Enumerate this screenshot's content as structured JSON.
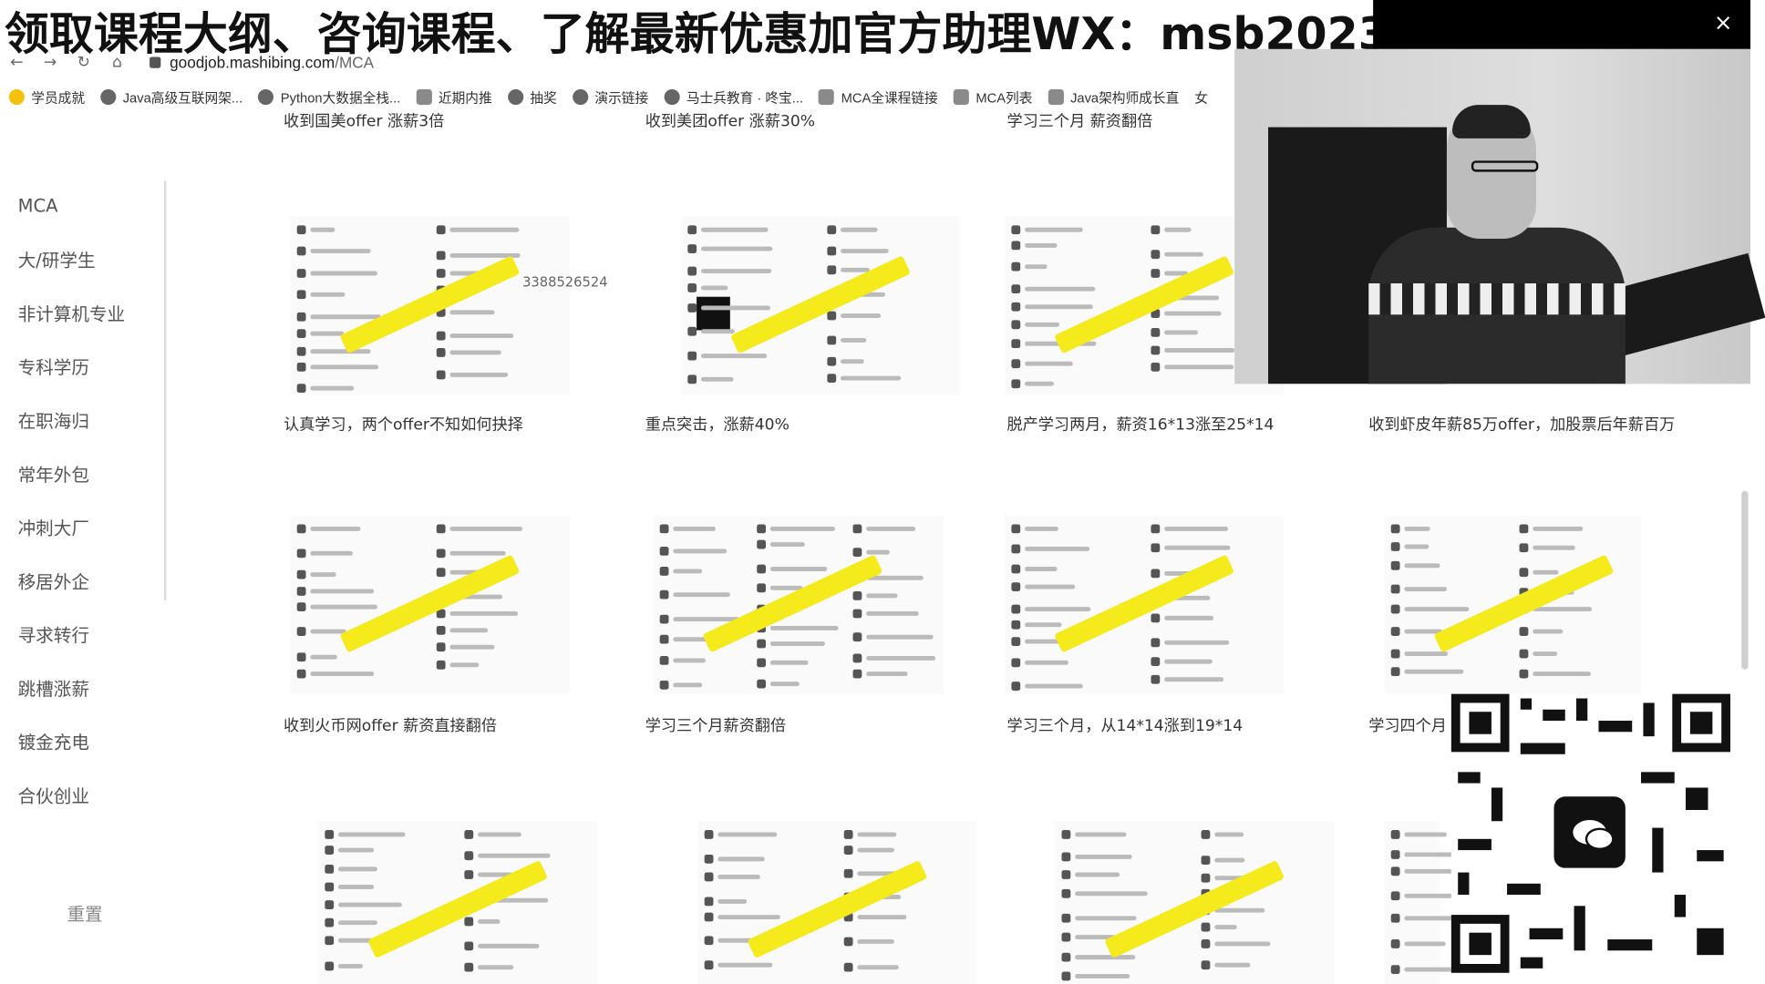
{
  "banner": {
    "text": "领取课程大纲、咨询课程、了解最新优惠加官方助理WX：msb2023",
    "close_label": "×"
  },
  "browser": {
    "back": "←",
    "forward": "→",
    "reload": "↻",
    "home": "⌂",
    "url_host": "goodjob.mashibing.com",
    "url_path": "/MCA"
  },
  "bookmarks": [
    {
      "label": "学员成就",
      "icon": "bookmark-icon"
    },
    {
      "label": "Java高级互联网架...",
      "icon": "globe-icon"
    },
    {
      "label": "Python大数据全栈...",
      "icon": "globe-icon"
    },
    {
      "label": "近期内推",
      "icon": "bookmark-icon"
    },
    {
      "label": "抽奖",
      "icon": "globe-icon"
    },
    {
      "label": "演示链接",
      "icon": "globe-icon"
    },
    {
      "label": "马士兵教育 · 咚宝...",
      "icon": "globe-icon"
    },
    {
      "label": "MCA全课程链接",
      "icon": "bookmark-icon"
    },
    {
      "label": "MCA列表",
      "icon": "bookmark-icon"
    },
    {
      "label": "Java架构师成长直",
      "icon": "bookmark-icon"
    },
    {
      "label": "女",
      "icon": ""
    }
  ],
  "sidebar": {
    "items": [
      "MCA",
      "大/研学生",
      "非计算机专业",
      "专科学历",
      "在职海归",
      "常年外包",
      "冲刺大厂",
      "移居外企",
      "寻求转行",
      "跳槽涨薪",
      "镀金充电",
      "合伙创业"
    ],
    "reset": "重置"
  },
  "captions": {
    "row0": [
      "收到国美offer 涨薪3倍",
      "收到美团offer 涨薪30%",
      "学习三个月 薪资翻倍"
    ],
    "row1": [
      "认真学习，两个offer不知如何抉择",
      "重点突击，涨薪40%",
      "脱产学习两月，薪资16*13涨至25*14",
      "收到虾皮年薪85万offer，加股票后年薪百万"
    ],
    "row2": [
      "收到火币网offer 薪资直接翻倍",
      "学习三个月薪资翻倍",
      "学习三个月，从14*14涨到19*14",
      "学习四个月"
    ]
  },
  "card_text": {
    "qq_number": "3388526524"
  },
  "colors": {
    "highlight": "#f5ea1c",
    "banner_bg": "#ffffff",
    "black_bar": "#000000"
  }
}
